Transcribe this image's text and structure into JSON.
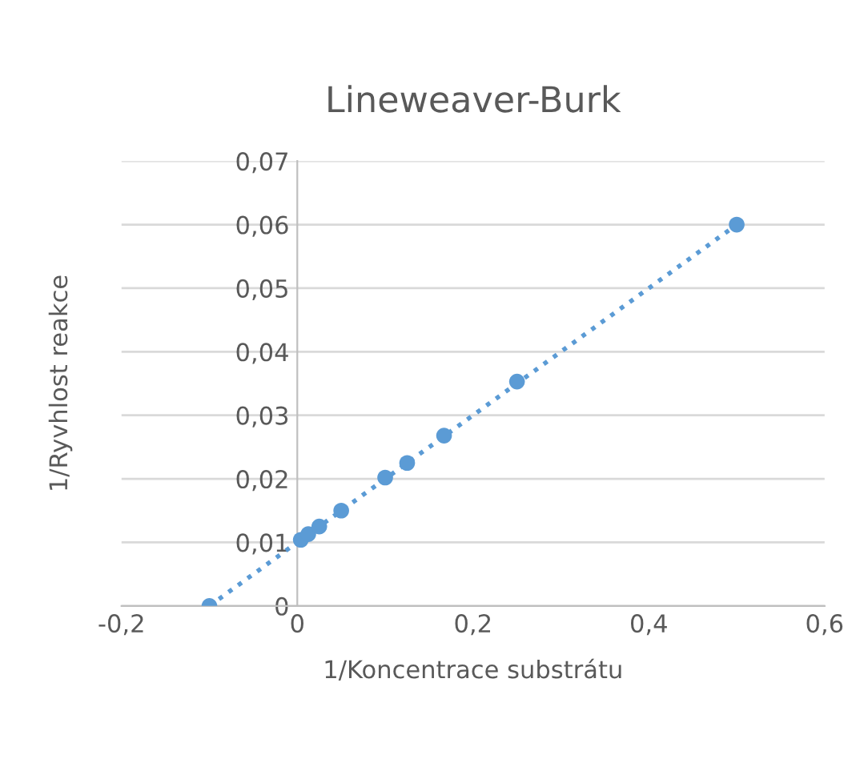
{
  "chart_data": {
    "type": "scatter",
    "title": "Lineweaver-Burk",
    "xlabel": "1/Koncentrace substrátu",
    "ylabel": "1/Ryvhlost reakce",
    "xlim": [
      -0.2,
      0.6
    ],
    "xticks": [
      {
        "value": -0.2,
        "label": "-0,2"
      },
      {
        "value": 0,
        "label": "0"
      },
      {
        "value": 0.2,
        "label": "0,2"
      },
      {
        "value": 0.4,
        "label": "0,4"
      },
      {
        "value": 0.6,
        "label": "0,6"
      }
    ],
    "ylim": [
      0,
      0.07
    ],
    "yticks": [
      {
        "value": 0,
        "label": "0"
      },
      {
        "value": 0.01,
        "label": "0,01"
      },
      {
        "value": 0.02,
        "label": "0,02"
      },
      {
        "value": 0.03,
        "label": "0,03"
      },
      {
        "value": 0.04,
        "label": "0,04"
      },
      {
        "value": 0.05,
        "label": "0,05"
      },
      {
        "value": 0.06,
        "label": "0,06"
      },
      {
        "value": 0.07,
        "label": "0,07"
      }
    ],
    "grid": "y",
    "marker": "circle",
    "series": [
      {
        "color": "#5b9bd5",
        "x": [
          -0.1,
          0.004,
          0.0125,
          0.025,
          0.05,
          0.1,
          0.125,
          0.167,
          0.25,
          0.5
        ],
        "values": [
          0,
          0.0104,
          0.0113,
          0.0125,
          0.015,
          0.0202,
          0.0225,
          0.0268,
          0.0353,
          0.06
        ]
      },
      {
        "type": "line",
        "line_style": "dotted",
        "marker": "none",
        "color": "#5b9bd5",
        "x": [
          -0.1,
          0.5
        ],
        "values": [
          0,
          0.06
        ]
      }
    ]
  }
}
